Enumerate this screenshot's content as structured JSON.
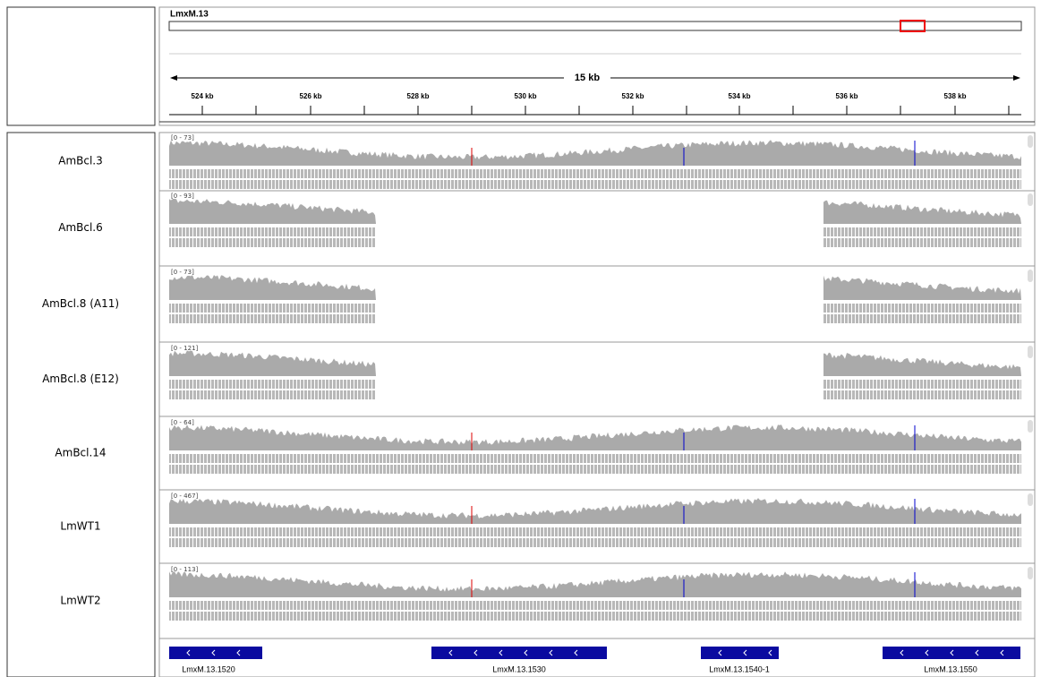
{
  "locus": {
    "chromosome": "LmxM.13"
  },
  "ruler": {
    "span": "15 kb",
    "ticks": [
      "524 kb",
      "526 kb",
      "528 kb",
      "530 kb",
      "532 kb",
      "534 kb",
      "536 kb",
      "538 kb"
    ]
  },
  "tracks": [
    {
      "name": "AmBcl.3",
      "range": "[0 - 73]"
    },
    {
      "name": "AmBcl.6",
      "range": "[0 - 93]"
    },
    {
      "name": "AmBcl.8 (A11)",
      "range": "[0 - 73]"
    },
    {
      "name": "AmBcl.8 (E12)",
      "range": "[0 - 121]"
    },
    {
      "name": "AmBcl.14",
      "range": "[0 - 64]"
    },
    {
      "name": "LmWT1",
      "range": "[0 - 467]"
    },
    {
      "name": "LmWT2",
      "range": "[0 - 113]"
    }
  ],
  "genes": [
    "LmxM.13.1520",
    "LmxM.13.1530",
    "LmxM.13.1540-1",
    "LmxM.13.1550"
  ]
}
